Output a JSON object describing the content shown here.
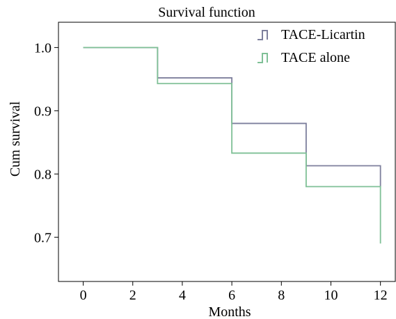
{
  "chart_data": {
    "type": "line",
    "step": true,
    "title": "Survival function",
    "xlabel": "Months",
    "ylabel": "Cum survival",
    "xlim": [
      -1,
      12.6
    ],
    "ylim": [
      0.63,
      1.04
    ],
    "xticks": [
      0,
      2,
      4,
      6,
      8,
      10,
      12
    ],
    "xtick_labels": [
      "0",
      "2",
      "4",
      "6",
      "8",
      "10",
      "12"
    ],
    "yticks": [
      0.7,
      0.8,
      0.9,
      1.0
    ],
    "ytick_labels": [
      "0.7",
      "0.8",
      "0.9",
      "1.0"
    ],
    "grid": false,
    "legend_position": "top-right",
    "series": [
      {
        "name": "TACE-Licartin",
        "color": "#7d7f9c",
        "x": [
          0,
          3,
          6,
          9,
          12
        ],
        "y": [
          1.0,
          0.952,
          0.88,
          0.813,
          0.78
        ]
      },
      {
        "name": "TACE alone",
        "color": "#7fc096",
        "x": [
          0,
          3,
          6,
          9,
          12
        ],
        "y": [
          1.0,
          0.943,
          0.833,
          0.78,
          0.69
        ]
      }
    ]
  }
}
